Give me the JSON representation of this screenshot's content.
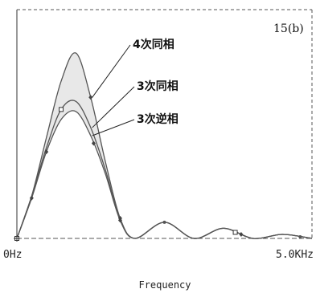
{
  "chart_data": {
    "type": "line",
    "title": "",
    "figure_label": "15(b)",
    "xlabel": "Frequency",
    "ylabel": "",
    "x_ticks": [
      "0Hz",
      "5.0KHz"
    ],
    "xlim": [
      0,
      5.0
    ],
    "ylim": [
      0,
      1.0
    ],
    "grid": false,
    "series": [
      {
        "name": "4次同相",
        "x": [
          0,
          0.25,
          0.5,
          0.75,
          1.0,
          1.25,
          1.5,
          1.75,
          2.0,
          2.5,
          3.0,
          3.5,
          4.0,
          4.5,
          5.0
        ],
        "y": [
          0,
          0.21,
          0.5,
          0.78,
          0.92,
          0.7,
          0.38,
          0.1,
          0.0,
          0.08,
          0.0,
          0.05,
          0.0,
          0.02,
          0.0
        ]
      },
      {
        "name": "3次同相",
        "x": [
          0,
          0.25,
          0.5,
          0.75,
          1.0,
          1.25,
          1.5,
          1.75,
          2.0,
          2.5,
          3.0,
          3.5,
          4.0,
          4.5,
          5.0
        ],
        "y": [
          0,
          0.21,
          0.45,
          0.64,
          0.68,
          0.55,
          0.34,
          0.09,
          0.0,
          0.08,
          0.0,
          0.05,
          0.0,
          0.02,
          0.0
        ]
      },
      {
        "name": "3次逆相",
        "x": [
          0,
          0.25,
          0.5,
          0.75,
          1.0,
          1.25,
          1.5,
          1.75,
          2.0,
          2.5,
          3.0,
          3.5,
          4.0,
          4.5,
          5.0
        ],
        "y": [
          0,
          0.2,
          0.43,
          0.59,
          0.63,
          0.51,
          0.32,
          0.09,
          0.0,
          0.08,
          0.0,
          0.05,
          0.0,
          0.02,
          0.0
        ]
      }
    ],
    "annotations": [
      {
        "text": "4次同相",
        "series": 0,
        "x": 1.25
      },
      {
        "text": "3次同相",
        "series": 1,
        "x": 1.25
      },
      {
        "text": "3次逆相",
        "series": 2,
        "x": 1.25
      }
    ],
    "markers": [
      {
        "series": 0,
        "x": 1.25,
        "shape": "diamond"
      },
      {
        "series": 1,
        "x": 0.75,
        "shape": "square"
      },
      {
        "series": 2,
        "x": 0.25,
        "shape": "diamond"
      },
      {
        "series": 2,
        "x": 0.5,
        "shape": "diamond"
      },
      {
        "series": 2,
        "x": 1.3,
        "shape": "diamond"
      },
      {
        "series": 0,
        "x": 1.75,
        "shape": "diamond"
      },
      {
        "series": 2,
        "x": 1.75,
        "shape": "diamond"
      },
      {
        "series": 0,
        "x": 0,
        "shape": "square"
      },
      {
        "series": 0,
        "x": 2.5,
        "shape": "dot"
      },
      {
        "series": 0,
        "x": 3.7,
        "shape": "square"
      },
      {
        "series": 0,
        "x": 3.8,
        "shape": "diamond"
      },
      {
        "series": 0,
        "x": 4.8,
        "shape": "dot"
      }
    ],
    "colors": {
      "line": "#555555",
      "frame": "#555555",
      "fill": "#e8e8e8"
    }
  }
}
